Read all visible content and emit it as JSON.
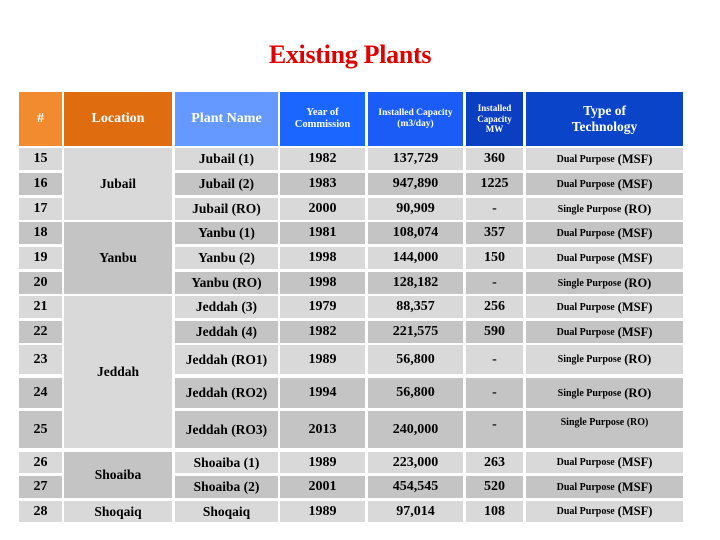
{
  "title": "Existing Plants",
  "colors": {
    "title": "#e00000",
    "header_num": "#f28a30",
    "header_location": "#e06c10",
    "header_plant": "#6699ff",
    "header_year": "#1a66ff",
    "header_capacity": "#1a5cf5",
    "header_mw": "#0a3fc2",
    "header_type": "#0a44c8",
    "row_light": "#d9d9d9",
    "row_dark": "#c4c4c4"
  },
  "headers": {
    "num": "#",
    "location": "Location",
    "plant": "Plant Name",
    "year_l1": "Year of",
    "year_l2": "Commission",
    "cap_l1": "Installed Capacity",
    "cap_l2": "(m3/day)",
    "mw_l1": "Installed",
    "mw_l2": "Capacity",
    "mw_l3": "MW",
    "type_l1": "Type of",
    "type_l2": "Technology"
  },
  "locations": [
    "Jubail",
    "Yanbu",
    "Jeddah",
    "Shoaiba",
    "Shoqaiq"
  ],
  "rows": [
    {
      "num": "15",
      "plant": "Jubail (1)",
      "year": "1982",
      "capacity": "137,729",
      "mw": "360",
      "type_a": "Dual Purpose",
      "type_b": "(MSF)"
    },
    {
      "num": "16",
      "plant": "Jubail (2)",
      "year": "1983",
      "capacity": "947,890",
      "mw": "1225",
      "type_a": "Dual Purpose",
      "type_b": "(MSF)"
    },
    {
      "num": "17",
      "plant": "Jubail (RO)",
      "year": "2000",
      "capacity": "90,909",
      "mw": "-",
      "type_a": "Single Purpose",
      "type_b": "(RO)"
    },
    {
      "num": "18",
      "plant": "Yanbu (1)",
      "year": "1981",
      "capacity": "108,074",
      "mw": "357",
      "type_a": "Dual Purpose",
      "type_b": "(MSF)"
    },
    {
      "num": "19",
      "plant": "Yanbu (2)",
      "year": "1998",
      "capacity": "144,000",
      "mw": "150",
      "type_a": "Dual Purpose",
      "type_b": "(MSF)"
    },
    {
      "num": "20",
      "plant": "Yanbu (RO)",
      "year": "1998",
      "capacity": "128,182",
      "mw": "-",
      "type_a": "Single Purpose",
      "type_b": "(RO)"
    },
    {
      "num": "21",
      "plant": "Jeddah (3)",
      "year": "1979",
      "capacity": "88,357",
      "mw": "256",
      "type_a": "Dual Purpose",
      "type_b": "(MSF)"
    },
    {
      "num": "22",
      "plant": "Jeddah (4)",
      "year": "1982",
      "capacity": "221,575",
      "mw": "590",
      "type_a": "Dual Purpose",
      "type_b": "(MSF)"
    },
    {
      "num": "23",
      "plant": "Jeddah (RO1)",
      "year": "1989",
      "capacity": "56,800",
      "mw": "-",
      "type_a": "Single Purpose",
      "type_b": "(RO)"
    },
    {
      "num": "24",
      "plant": "Jeddah (RO2)",
      "year": "1994",
      "capacity": "56,800",
      "mw": "-",
      "type_a": "Single Purpose",
      "type_b": "(RO)"
    },
    {
      "num": "25",
      "plant": "Jeddah (RO3)",
      "year": "2013",
      "capacity": "240,000",
      "mw": "-",
      "type_a": "Single Purpose (RO)",
      "type_b": ""
    },
    {
      "num": "26",
      "plant": "Shoaiba (1)",
      "year": "1989",
      "capacity": "223,000",
      "mw": "263",
      "type_a": "Dual Purpose",
      "type_b": "(MSF)"
    },
    {
      "num": "27",
      "plant": "Shoaiba (2)",
      "year": "2001",
      "capacity": "454,545",
      "mw": "520",
      "type_a": "Dual Purpose",
      "type_b": "(MSF)"
    },
    {
      "num": "28",
      "plant": "Shoqaiq",
      "year": "1989",
      "capacity": "97,014",
      "mw": "108",
      "type_a": "Dual Purpose",
      "type_b": "(MSF)"
    }
  ]
}
